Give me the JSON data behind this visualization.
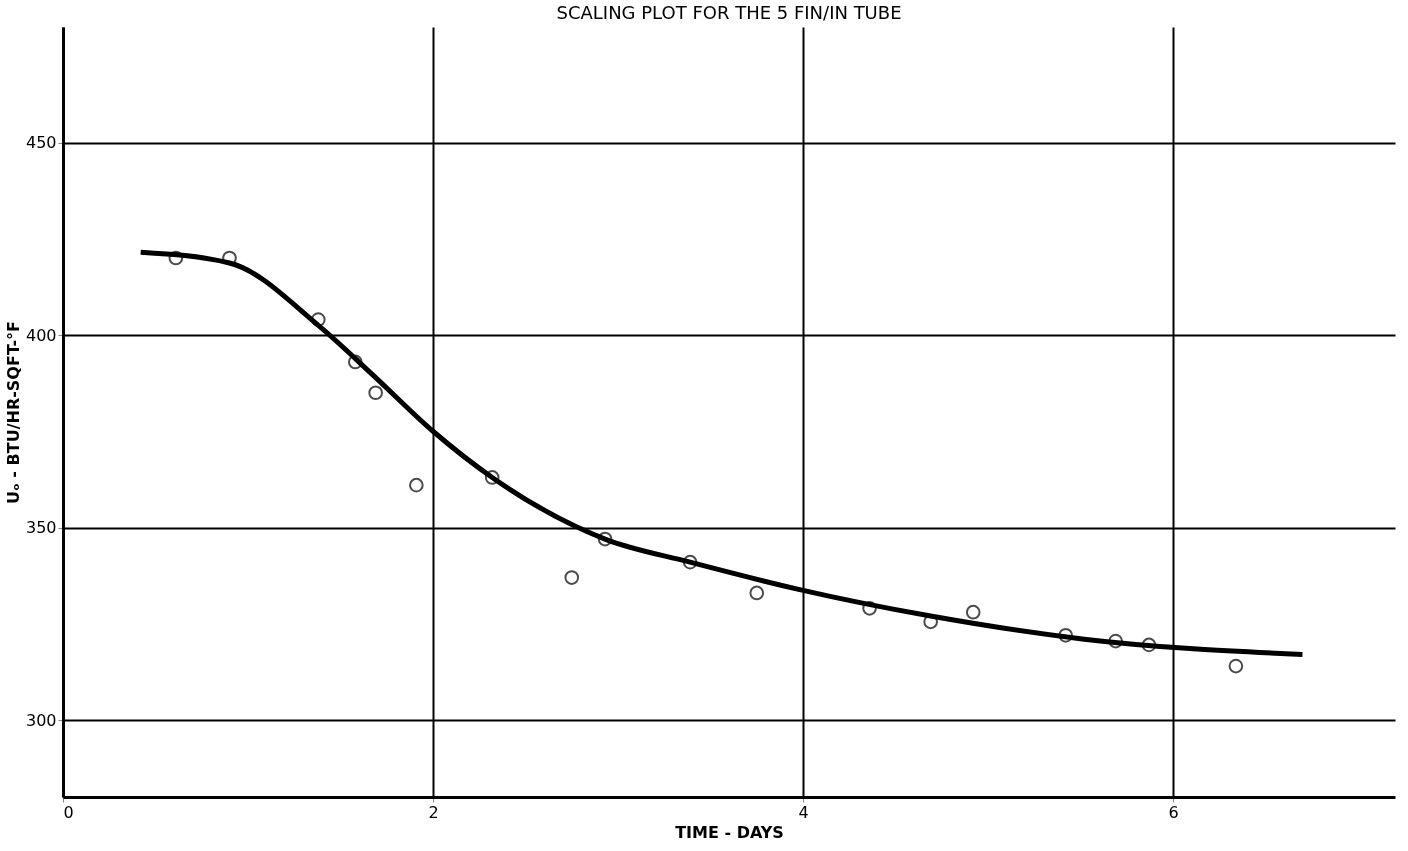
{
  "chart_data": {
    "type": "scatter",
    "title": "SCALING PLOT FOR THE 5 FIN/IN TUBE",
    "xlabel": "TIME - DAYS",
    "ylabel": "Uₒ - BTU/HR-SQFT-°F",
    "xlim": [
      0,
      7.2
    ],
    "ylim": [
      280,
      480
    ],
    "xticks": [
      0,
      2,
      4,
      6
    ],
    "yticks": [
      300,
      350,
      400,
      450
    ],
    "grid": true,
    "marker": "circle",
    "series": [
      {
        "color": "#000000",
        "x": [
          0.61,
          0.9,
          1.38,
          1.58,
          1.69,
          1.91,
          2.32,
          2.75,
          2.93,
          3.39,
          3.75,
          4.36,
          4.69,
          4.92,
          5.42,
          5.69,
          5.87,
          6.34
        ],
        "values": [
          420,
          420,
          404,
          393,
          385,
          361,
          363,
          337,
          347,
          341,
          333,
          329,
          325.5,
          328,
          322,
          320.5,
          319.5,
          314
        ]
      },
      {
        "type": "line",
        "color": "#000000",
        "marker": "none",
        "x": [
          0.42,
          0.9,
          1.38,
          1.68,
          2.0,
          2.32,
          2.93,
          3.39,
          3.97,
          4.69,
          5.52,
          6.7
        ],
        "values": [
          421.5,
          418.7,
          402.5,
          389.4,
          375,
          363,
          347,
          341,
          334,
          327,
          321,
          317
        ]
      }
    ]
  }
}
